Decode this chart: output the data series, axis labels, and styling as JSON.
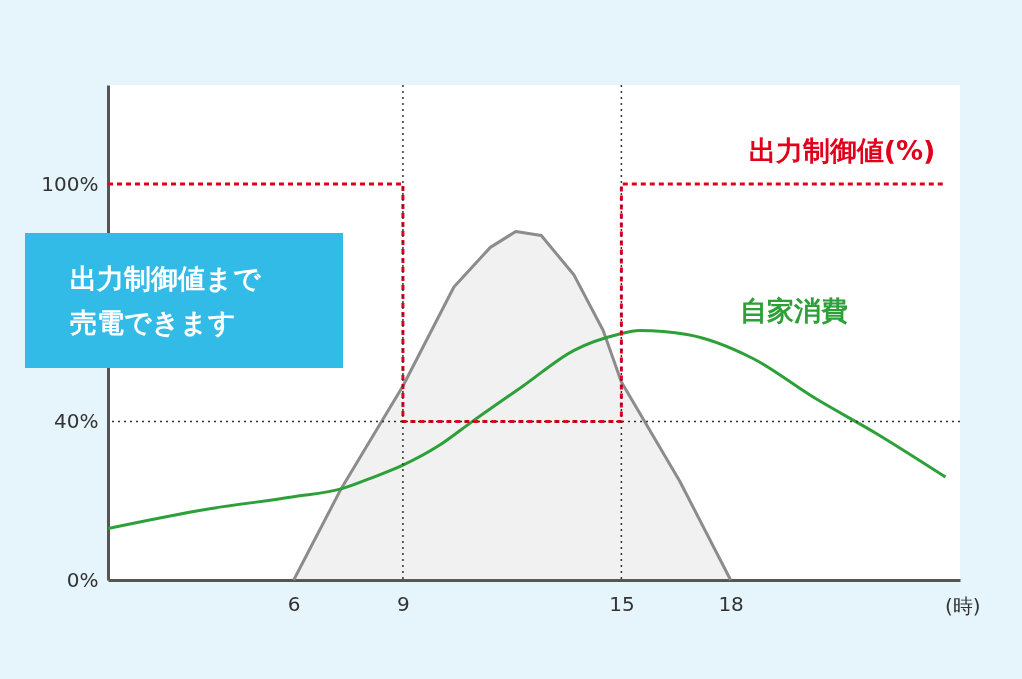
{
  "chart_data": {
    "type": "line",
    "xlabel": "(時)",
    "xlim": [
      0.9,
      24.3
    ],
    "ylim": [
      0,
      125
    ],
    "xticks": [
      6,
      9,
      15,
      18
    ],
    "yticks": [
      {
        "value": 0,
        "label": "0%"
      },
      {
        "value": 40,
        "label": "40%"
      },
      {
        "value": 100,
        "label": "100%"
      }
    ],
    "series": [
      {
        "type": "area",
        "color": "#8c8c8c",
        "x": [
          6,
          7.3,
          9,
          10.4,
          11.4,
          12.1,
          12.8,
          13.7,
          14.5,
          15,
          16.6,
          18
        ],
        "values": [
          0,
          23,
          49,
          74,
          84,
          88,
          87,
          77,
          63,
          50,
          25,
          0
        ]
      },
      {
        "name": "自家消費",
        "color": "#2ea039",
        "x": [
          0.9,
          3.7,
          6,
          7.3,
          8.2,
          9,
          10,
          10.9,
          12.3,
          13.7,
          14.9,
          15.5,
          16.8,
          18.6,
          20.3,
          22,
          23.9
        ],
        "values": [
          13,
          18,
          21,
          23,
          26,
          29,
          34,
          40,
          49,
          58,
          62,
          63,
          62,
          56,
          46,
          37,
          26
        ]
      },
      {
        "name": "出力制御値(%)",
        "type": "step",
        "color": "#e0001b",
        "line_style": "dashed",
        "x": [
          0.9,
          9,
          15,
          23.9
        ],
        "values": [
          100,
          40,
          100,
          100
        ]
      }
    ],
    "ref_lines": [
      {
        "axis": "x",
        "value": 9,
        "color": "#333333",
        "line_style": "dotted"
      },
      {
        "axis": "x",
        "value": 15,
        "color": "#333333",
        "line_style": "dotted"
      },
      {
        "axis": "y",
        "value": 40,
        "color": "#333333",
        "line_style": "dotted"
      }
    ],
    "annotations": [
      "出力制御値まで売電できます"
    ]
  }
}
